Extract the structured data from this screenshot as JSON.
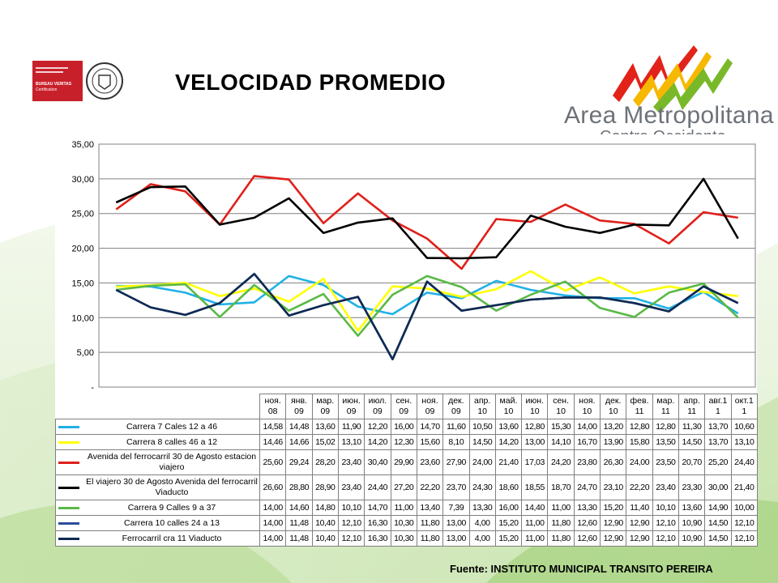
{
  "slide": {
    "title": "VELOCIDAD PROMEDIO",
    "logo_main": "Area Metropolitana",
    "logo_sub": "Centro Occidente",
    "cert_lines": [
      "BUREAU VERITAS",
      "Certification"
    ],
    "source": "Fuente: INSTITUTO MUNICIPAL TRANSITO PEREIRA"
  },
  "chart_data": {
    "type": "line",
    "ylim": [
      0,
      35
    ],
    "y_ticks": [
      "-",
      "5,00",
      "10,00",
      "15,00",
      "20,00",
      "25,00",
      "30,00",
      "35,00"
    ],
    "grid": true,
    "legend": "data-table",
    "categories": [
      "ноя. 08",
      "янв. 09",
      "мар. 09",
      "июн. 09",
      "июл. 09",
      "сен. 09",
      "ноя. 09",
      "дек. 09",
      "апр. 10",
      "май. 10",
      "июн. 10",
      "сен. 10",
      "ноя. 10",
      "дек. 10",
      "фев. 11",
      "мар. 11",
      "апр. 11",
      "авг.1 1",
      "окт.1 1"
    ],
    "series": [
      {
        "name": "Carrera 7 Cales 12 a 46",
        "color": "#1fb1e6",
        "values": [
          14.58,
          14.48,
          13.6,
          11.9,
          12.2,
          16.0,
          14.7,
          11.6,
          10.5,
          13.6,
          12.8,
          15.3,
          14.0,
          13.2,
          12.8,
          12.8,
          11.3,
          13.7,
          10.6
        ],
        "labels": [
          "14,58",
          "14,48",
          "13,60",
          "11,90",
          "12,20",
          "16,00",
          "14,70",
          "11,60",
          "10,50",
          "13,60",
          "12,80",
          "15,30",
          "14,00",
          "13,20",
          "12,80",
          "12,80",
          "11,30",
          "13,70",
          "10,60"
        ]
      },
      {
        "name": "Carrera 8 calles 46 a 12",
        "color": "#ffff00",
        "values": [
          14.46,
          14.66,
          15.02,
          13.1,
          14.2,
          12.3,
          15.6,
          8.1,
          14.5,
          14.2,
          13.0,
          14.1,
          16.7,
          13.9,
          15.8,
          13.5,
          14.5,
          13.7,
          13.1
        ],
        "labels": [
          "14,46",
          "14,66",
          "15,02",
          "13,10",
          "14,20",
          "12,30",
          "15,60",
          "8,10",
          "14,50",
          "14,20",
          "13,00",
          "14,10",
          "16,70",
          "13,90",
          "15,80",
          "13,50",
          "14,50",
          "13,70",
          "13,10"
        ]
      },
      {
        "name": "Avenida del ferrocarril  30 de Agosto estacion viajero",
        "color": "#e0201a",
        "values": [
          25.6,
          29.24,
          28.2,
          23.4,
          30.4,
          29.9,
          23.6,
          27.9,
          24.0,
          21.4,
          17.03,
          24.2,
          23.8,
          26.3,
          24.0,
          23.5,
          20.7,
          25.2,
          24.4
        ],
        "labels": [
          "25,60",
          "29,24",
          "28,20",
          "23,40",
          "30,40",
          "29,90",
          "23,60",
          "27,90",
          "24,00",
          "21,40",
          "17,03",
          "24,20",
          "23,80",
          "26,30",
          "24,00",
          "23,50",
          "20,70",
          "25,20",
          "24,40"
        ]
      },
      {
        "name": "El viajero 30 de Agosto Avenida del ferrocarril Viaducto",
        "color": "#000000",
        "values": [
          26.6,
          28.8,
          28.9,
          23.4,
          24.4,
          27.2,
          22.2,
          23.7,
          24.3,
          18.6,
          18.55,
          18.7,
          24.7,
          23.1,
          22.2,
          23.4,
          23.3,
          30.0,
          21.4
        ],
        "labels": [
          "26,60",
          "28,80",
          "28,90",
          "23,40",
          "24,40",
          "27,20",
          "22,20",
          "23,70",
          "24,30",
          "18,60",
          "18,55",
          "18,70",
          "24,70",
          "23,10",
          "22,20",
          "23,40",
          "23,30",
          "30,00",
          "21,40"
        ]
      },
      {
        "name": "Carrera 9 Calles 9 a 37",
        "color": "#5ab946",
        "values": [
          14.0,
          14.6,
          14.8,
          10.1,
          14.7,
          11.0,
          13.4,
          7.39,
          13.3,
          16.0,
          14.4,
          11.0,
          13.3,
          15.2,
          11.4,
          10.1,
          13.6,
          14.9,
          10.0
        ],
        "labels": [
          "14,00",
          "14,60",
          "14,80",
          "10,10",
          "14,70",
          "11,00",
          "13,40",
          "7,39",
          "13,30",
          "16,00",
          "14,40",
          "11,00",
          "13,30",
          "15,20",
          "11,40",
          "10,10",
          "13,60",
          "14,90",
          "10,00"
        ]
      },
      {
        "name": "Carrera 10 calles 24 a 13",
        "color": "#2a4d9b",
        "values": [
          14.0,
          11.48,
          10.4,
          12.1,
          16.3,
          10.3,
          11.8,
          13.0,
          4.0,
          15.2,
          11.0,
          11.8,
          12.6,
          12.9,
          12.9,
          12.1,
          10.9,
          14.5,
          12.1
        ],
        "labels": [
          "14,00",
          "11,48",
          "10,40",
          "12,10",
          "16,30",
          "10,30",
          "11,80",
          "13,00",
          "4,00",
          "15,20",
          "11,00",
          "11,80",
          "12,60",
          "12,90",
          "12,90",
          "12,10",
          "10,90",
          "14,50",
          "12,10"
        ]
      },
      {
        "name": "Ferrocarril cra 11 Viaducto",
        "color": "#0f2a52",
        "values": [
          14.0,
          11.48,
          10.4,
          12.1,
          16.3,
          10.3,
          11.8,
          13.0,
          4.0,
          15.2,
          11.0,
          11.8,
          12.6,
          12.9,
          12.9,
          12.1,
          10.9,
          14.5,
          12.1
        ],
        "labels": [
          "14,00",
          "11,48",
          "10,40",
          "12,10",
          "16,30",
          "10,30",
          "11,80",
          "13,00",
          "4,00",
          "15,20",
          "11,00",
          "11,80",
          "12,60",
          "12,90",
          "12,90",
          "12,10",
          "10,90",
          "14,50",
          "12,10"
        ]
      }
    ]
  }
}
